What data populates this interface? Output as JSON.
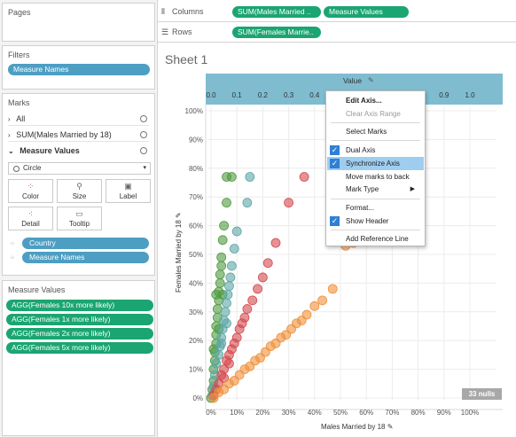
{
  "pages": {
    "title": "Pages"
  },
  "filters": {
    "title": "Filters",
    "pill": "Measure Names"
  },
  "marks": {
    "title": "Marks",
    "rows": [
      "All",
      "SUM(Males Married by 18)",
      "Measure Values"
    ],
    "mark_type": "Circle",
    "buttons": [
      "Color",
      "Size",
      "Label",
      "Detail",
      "Tooltip"
    ],
    "fields": [
      "Country",
      "Measure Names"
    ]
  },
  "measure_values": {
    "title": "Measure Values",
    "pills": [
      "AGG(Females 10x more likely)",
      "AGG(Females 1x more likely)",
      "AGG(Females 2x more likely)",
      "AGG(Females 5x more likely)"
    ]
  },
  "shelves": {
    "columns_label": "Columns",
    "columns_pills": [
      "SUM(Males Married ..",
      "Measure Values"
    ],
    "rows_label": "Rows",
    "rows_pills": [
      "SUM(Females Marrie.."
    ]
  },
  "sheet_title": "Sheet 1",
  "nulls_badge": "33 nulls",
  "context_menu": {
    "items": [
      "Edit Axis...",
      "Clear Axis Range",
      "Select Marks",
      "Dual Axis",
      "Synchronize Axis",
      "Move marks to back",
      "Mark Type",
      "Format...",
      "Show Header",
      "Add Reference Line"
    ]
  },
  "chart_data": {
    "type": "scatter",
    "top_axis": {
      "title": "Value",
      "ticks": [
        "0.0",
        "0.1",
        "0.2",
        "0.3",
        "0.4",
        "0.5",
        "0.6",
        "0.7",
        "0.8",
        "0.9",
        "1.0"
      ]
    },
    "xlabel": "Males Married by 18",
    "ylabel": "Females Married by 18",
    "x_ticks": [
      "0%",
      "10%",
      "20%",
      "30%",
      "40%",
      "50%",
      "60%",
      "70%",
      "80%",
      "90%",
      "100%"
    ],
    "y_ticks": [
      "0%",
      "10%",
      "20%",
      "30%",
      "40%",
      "50%",
      "60%",
      "70%",
      "80%",
      "90%",
      "100%"
    ],
    "xlim": [
      0,
      1
    ],
    "ylim": [
      0,
      1
    ],
    "series": [
      {
        "color": "#4f9a3f",
        "points": [
          [
            0.0,
            0.0
          ],
          [
            0.005,
            0.03
          ],
          [
            0.01,
            0.06
          ],
          [
            0.01,
            0.1
          ],
          [
            0.015,
            0.13
          ],
          [
            0.015,
            0.16
          ],
          [
            0.02,
            0.19
          ],
          [
            0.02,
            0.22
          ],
          [
            0.02,
            0.25
          ],
          [
            0.025,
            0.28
          ],
          [
            0.025,
            0.31
          ],
          [
            0.03,
            0.34
          ],
          [
            0.03,
            0.37
          ],
          [
            0.035,
            0.4
          ],
          [
            0.035,
            0.43
          ],
          [
            0.04,
            0.46
          ],
          [
            0.04,
            0.49
          ],
          [
            0.045,
            0.55
          ],
          [
            0.05,
            0.6
          ],
          [
            0.06,
            0.68
          ],
          [
            0.06,
            0.77
          ],
          [
            0.08,
            0.77
          ],
          [
            0.03,
            0.24
          ],
          [
            0.01,
            0.17
          ],
          [
            0.045,
            0.36
          ],
          [
            0.02,
            0.36
          ]
        ]
      },
      {
        "color": "#5ba7a5",
        "points": [
          [
            0.005,
            0.01
          ],
          [
            0.01,
            0.04
          ],
          [
            0.015,
            0.08
          ],
          [
            0.02,
            0.12
          ],
          [
            0.03,
            0.15
          ],
          [
            0.035,
            0.18
          ],
          [
            0.04,
            0.21
          ],
          [
            0.045,
            0.24
          ],
          [
            0.05,
            0.27
          ],
          [
            0.055,
            0.3
          ],
          [
            0.06,
            0.33
          ],
          [
            0.065,
            0.36
          ],
          [
            0.07,
            0.39
          ],
          [
            0.075,
            0.42
          ],
          [
            0.08,
            0.46
          ],
          [
            0.09,
            0.52
          ],
          [
            0.1,
            0.58
          ],
          [
            0.14,
            0.68
          ],
          [
            0.15,
            0.77
          ],
          [
            0.04,
            0.19
          ],
          [
            0.06,
            0.26
          ]
        ]
      },
      {
        "color": "#d44a4e",
        "points": [
          [
            0.01,
            0.01
          ],
          [
            0.02,
            0.03
          ],
          [
            0.03,
            0.05
          ],
          [
            0.04,
            0.08
          ],
          [
            0.05,
            0.1
          ],
          [
            0.06,
            0.13
          ],
          [
            0.07,
            0.15
          ],
          [
            0.08,
            0.17
          ],
          [
            0.09,
            0.19
          ],
          [
            0.1,
            0.21
          ],
          [
            0.11,
            0.24
          ],
          [
            0.12,
            0.26
          ],
          [
            0.13,
            0.28
          ],
          [
            0.14,
            0.31
          ],
          [
            0.16,
            0.34
          ],
          [
            0.18,
            0.38
          ],
          [
            0.2,
            0.42
          ],
          [
            0.22,
            0.47
          ],
          [
            0.25,
            0.54
          ],
          [
            0.3,
            0.68
          ],
          [
            0.36,
            0.77
          ],
          [
            0.07,
            0.12
          ],
          [
            0.05,
            0.07
          ]
        ]
      },
      {
        "color": "#f0913a",
        "points": [
          [
            0.01,
            0.0
          ],
          [
            0.03,
            0.02
          ],
          [
            0.05,
            0.03
          ],
          [
            0.07,
            0.05
          ],
          [
            0.09,
            0.06
          ],
          [
            0.11,
            0.08
          ],
          [
            0.13,
            0.1
          ],
          [
            0.15,
            0.11
          ],
          [
            0.17,
            0.13
          ],
          [
            0.19,
            0.14
          ],
          [
            0.21,
            0.16
          ],
          [
            0.23,
            0.18
          ],
          [
            0.25,
            0.19
          ],
          [
            0.27,
            0.21
          ],
          [
            0.29,
            0.22
          ],
          [
            0.31,
            0.24
          ],
          [
            0.33,
            0.26
          ],
          [
            0.35,
            0.27
          ],
          [
            0.37,
            0.29
          ],
          [
            0.4,
            0.32
          ],
          [
            0.43,
            0.34
          ],
          [
            0.47,
            0.38
          ],
          [
            0.52,
            0.53
          ],
          [
            0.55,
            0.54
          ],
          [
            0.6,
            0.58
          ],
          [
            0.75,
            0.71
          ],
          [
            0.77,
            0.77
          ]
        ]
      }
    ],
    "grid": true
  }
}
